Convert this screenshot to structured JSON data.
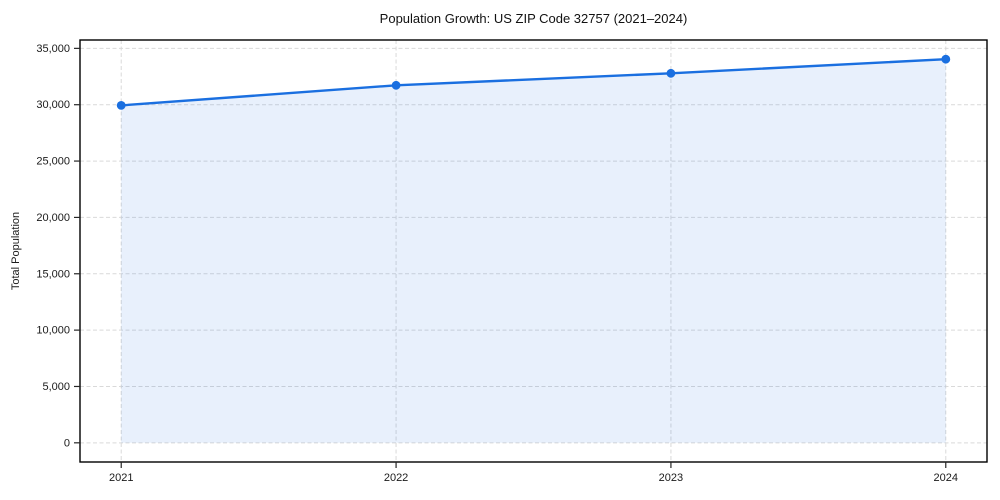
{
  "figure": {
    "background": "#ffffff"
  },
  "chart_data": {
    "type": "area",
    "title": "Population Growth: US ZIP Code 32757 (2021–2024)",
    "xlabel": "",
    "ylabel": "Total Population",
    "x": [
      2021,
      2022,
      2023,
      2024
    ],
    "series": [
      {
        "name": "Total Population",
        "values": [
          29940,
          31720,
          32790,
          34040
        ]
      }
    ],
    "fill_to": 0,
    "xtick_labels": [
      "2021",
      "2022",
      "2023",
      "2024"
    ],
    "yticks": [
      0,
      5000,
      10000,
      15000,
      20000,
      25000,
      30000,
      35000
    ],
    "ytick_labels": [
      "0",
      "5,000",
      "10,000",
      "15,000",
      "20,000",
      "25,000",
      "30,000",
      "35,000"
    ],
    "xlim": [
      2020.85,
      2024.15
    ],
    "ylim": [
      -1702,
      35742
    ],
    "grid": true,
    "grid_style": "dashed",
    "legend_position": "none",
    "colors": {
      "line": "#1a6fe0",
      "marker": "#1a6fe0",
      "fill": "rgba(26, 111, 224, 0.10)",
      "grid": "#d9d9d9",
      "frame": "#000000",
      "tick": "#262626",
      "tick_label": "#1a1a1a",
      "title": "#111111",
      "plot_background": "#ffffff"
    }
  }
}
